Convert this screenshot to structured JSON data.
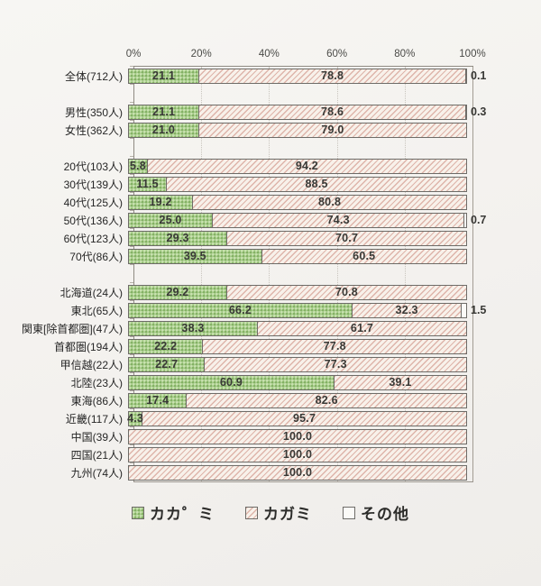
{
  "chart_data": {
    "type": "bar",
    "orientation": "horizontal",
    "stacked": true,
    "unit": "%",
    "xlim": [
      0,
      100
    ],
    "grid": true,
    "legend_position": "bottom",
    "x_ticks": [
      "0%",
      "20%",
      "40%",
      "60%",
      "80%",
      "100%"
    ],
    "series_names": [
      "カカ゜ミ",
      "カガミ",
      "その他"
    ],
    "groups": [
      [
        {
          "label": "全体(712人)",
          "kakami": "21.1",
          "kagami": "78.8",
          "other": "0.1"
        }
      ],
      [
        {
          "label": "男性(350人)",
          "kakami": "21.1",
          "kagami": "78.6",
          "other": "0.3"
        },
        {
          "label": "女性(362人)",
          "kakami": "21.0",
          "kagami": "79.0",
          "other": null
        }
      ],
      [
        {
          "label": "20代(103人)",
          "kakami": "5.8",
          "kagami": "94.2",
          "other": null
        },
        {
          "label": "30代(139人)",
          "kakami": "11.5",
          "kagami": "88.5",
          "other": null
        },
        {
          "label": "40代(125人)",
          "kakami": "19.2",
          "kagami": "80.8",
          "other": null
        },
        {
          "label": "50代(136人)",
          "kakami": "25.0",
          "kagami": "74.3",
          "other": "0.7"
        },
        {
          "label": "60代(123人)",
          "kakami": "29.3",
          "kagami": "70.7",
          "other": null
        },
        {
          "label": "70代(86人)",
          "kakami": "39.5",
          "kagami": "60.5",
          "other": null
        }
      ],
      [
        {
          "label": "北海道(24人)",
          "kakami": "29.2",
          "kagami": "70.8",
          "other": null
        },
        {
          "label": "東北(65人)",
          "kakami": "66.2",
          "kagami": "32.3",
          "other": "1.5"
        },
        {
          "label": "関東[除首都圏](47人)",
          "kakami": "38.3",
          "kagami": "61.7",
          "other": null
        },
        {
          "label": "首都圏(194人)",
          "kakami": "22.2",
          "kagami": "77.8",
          "other": null
        },
        {
          "label": "甲信越(22人)",
          "kakami": "22.7",
          "kagami": "77.3",
          "other": null
        },
        {
          "label": "北陸(23人)",
          "kakami": "60.9",
          "kagami": "39.1",
          "other": null
        },
        {
          "label": "東海(86人)",
          "kakami": "17.4",
          "kagami": "82.6",
          "other": null
        },
        {
          "label": "近畿(117人)",
          "kakami": "4.3",
          "kagami": "95.7",
          "other": null
        },
        {
          "label": "中国(39人)",
          "kakami": null,
          "kagami": "100.0",
          "other": null
        },
        {
          "label": "四国(21人)",
          "kakami": null,
          "kagami": "100.0",
          "other": null
        },
        {
          "label": "九州(74人)",
          "kakami": null,
          "kagami": "100.0",
          "other": null
        }
      ]
    ],
    "legend": [
      {
        "label": "カカ゜ミ",
        "swatch": "green-dotted"
      },
      {
        "label": "カガミ",
        "swatch": "pink-hatched"
      },
      {
        "label": "その他",
        "swatch": "white"
      }
    ],
    "colors": {
      "green_base": "#a5ca89",
      "green_dot": "#83b163",
      "pink_background": "#f8f1ea",
      "pink_stripe": "#d5a094",
      "other_white": "#fbfaf7",
      "bar_border": "#6e6c68",
      "axis": "#8f8a82",
      "text": "#393936",
      "paper": "#f3f1ee"
    }
  }
}
